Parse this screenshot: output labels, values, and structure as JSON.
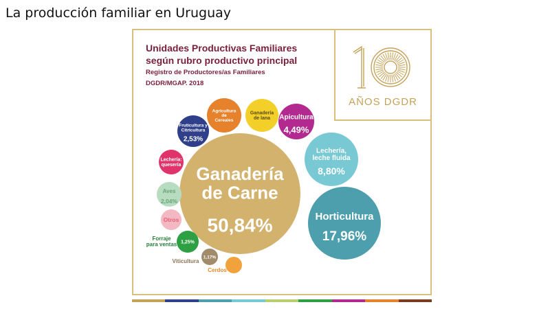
{
  "slide": {
    "title": "La producción familiar en Uruguay"
  },
  "header": {
    "title_line1": "Unidades Productivas Familiares",
    "title_line2": "según rubro productivo principal",
    "subtitle": "Registro de Productores/as Familiares",
    "source": "DGDR/MGAP. 2018"
  },
  "badge": {
    "number": "10",
    "label": "AÑOS DGDR",
    "color": "#c5a259"
  },
  "chart_data": {
    "type": "bubble",
    "title": "Unidades Productivas Familiares según rubro productivo principal",
    "series": [
      {
        "category": "Ganadería de Carne",
        "text": [
          "Ganadería",
          "de Carne"
        ],
        "percent_label": "50,84%",
        "value": 50.84,
        "color": "#d3b26e"
      },
      {
        "category": "Horticultura",
        "text": [
          "Horticultura"
        ],
        "percent_label": "17,96%",
        "value": 17.96,
        "color": "#4d9fad"
      },
      {
        "category": "Lechería, leche fluida",
        "text": [
          "Lechería,",
          "leche fluida"
        ],
        "percent_label": "8,80%",
        "value": 8.8,
        "color": "#78c9d4"
      },
      {
        "category": "Apicultura",
        "text": [
          "Apicultura"
        ],
        "percent_label": "4,49%",
        "value": 4.49,
        "color": "#b22a8f"
      },
      {
        "category": "Fruticultura y Citricultura",
        "text": [
          "Fruticultura y",
          "Citricultura"
        ],
        "percent_label": "2,53%",
        "value": 2.53,
        "color": "#2f3f8a"
      },
      {
        "category": "Aves",
        "text": [
          "Aves"
        ],
        "percent_label": "2,04%",
        "value": 2.04,
        "color": "#b7dcc0"
      },
      {
        "category": "Forraje para ventas",
        "text": [
          "Forraje",
          "para ventas"
        ],
        "percent_label": "1,25%",
        "value": 1.25,
        "color": "#2ea043"
      },
      {
        "category": "Viticultura",
        "text": [
          "Viticultura"
        ],
        "percent_label": "1,17%",
        "value": 1.17,
        "color": "#a28b6a"
      },
      {
        "category": "Agricultura de Cereales",
        "text": [
          "Agricultura",
          "de",
          "Cereales"
        ],
        "percent_label": "",
        "value": null,
        "color": "#e6812c"
      },
      {
        "category": "Ganadería de lana",
        "text": [
          "Ganadería",
          "de lana"
        ],
        "percent_label": "",
        "value": null,
        "color": "#f3cf2a"
      },
      {
        "category": "Lechería: quesería",
        "text": [
          "Lechería:",
          "quesería"
        ],
        "percent_label": "",
        "value": null,
        "color": "#e0336b"
      },
      {
        "category": "Otros",
        "text": [
          "Otros"
        ],
        "percent_label": "",
        "value": null,
        "color": "#f3b8c1"
      },
      {
        "category": "Cerdos",
        "text": [
          "Cerdos"
        ],
        "percent_label": "",
        "value": null,
        "color": "#f2a23c"
      }
    ]
  },
  "stripe_colors": [
    "#c5a259",
    "#2f3f8a",
    "#4d9fad",
    "#78c9d4",
    "#b7cf6c",
    "#2ea043",
    "#b22a8f",
    "#e6812c",
    "#7a3b1e"
  ]
}
